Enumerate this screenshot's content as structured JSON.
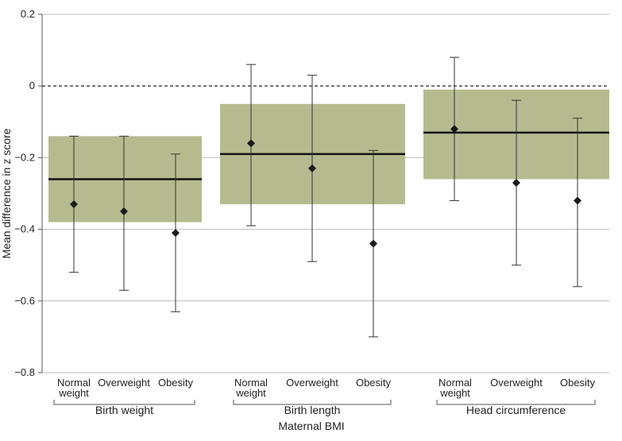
{
  "chart_data": {
    "type": "forest",
    "ylabel": "Mean difference in z score",
    "xlabel": "Maternal BMI",
    "ylim": [
      -0.8,
      0.2
    ],
    "yticks": [
      0.2,
      0,
      -0.2,
      -0.4,
      -0.6,
      -0.8
    ],
    "ytick_labels": [
      "0.2",
      "0",
      "−0.2",
      "−0.4",
      "−0.6",
      "−0.8"
    ],
    "reference_line": 0,
    "colors": {
      "band": "#b5bb8f",
      "marker": "#1a1a1a",
      "grid": "#bbbbbb"
    },
    "groups": [
      {
        "name": "Birth weight",
        "pooled": {
          "estimate": -0.26,
          "low": -0.38,
          "high": -0.14
        },
        "points": [
          {
            "label": [
              "Normal",
              "weight"
            ],
            "estimate": -0.33,
            "low": -0.52,
            "high": -0.14
          },
          {
            "label": [
              "Overweight"
            ],
            "estimate": -0.35,
            "low": -0.57,
            "high": -0.14
          },
          {
            "label": [
              "Obesity"
            ],
            "estimate": -0.41,
            "low": -0.63,
            "high": -0.19
          }
        ]
      },
      {
        "name": "Birth length",
        "pooled": {
          "estimate": -0.19,
          "low": -0.33,
          "high": -0.05
        },
        "points": [
          {
            "label": [
              "Normal",
              "weight"
            ],
            "estimate": -0.16,
            "low": -0.39,
            "high": 0.06
          },
          {
            "label": [
              "Overweight"
            ],
            "estimate": -0.23,
            "low": -0.49,
            "high": 0.03
          },
          {
            "label": [
              "Obesity"
            ],
            "estimate": -0.44,
            "low": -0.7,
            "high": -0.18
          }
        ]
      },
      {
        "name": "Head circumference",
        "pooled": {
          "estimate": -0.13,
          "low": -0.26,
          "high": -0.01
        },
        "points": [
          {
            "label": [
              "Normal",
              "weight"
            ],
            "estimate": -0.12,
            "low": -0.32,
            "high": 0.08
          },
          {
            "label": [
              "Overweight"
            ],
            "estimate": -0.27,
            "low": -0.5,
            "high": -0.04
          },
          {
            "label": [
              "Obesity"
            ],
            "estimate": -0.32,
            "low": -0.56,
            "high": -0.09
          }
        ]
      }
    ]
  }
}
